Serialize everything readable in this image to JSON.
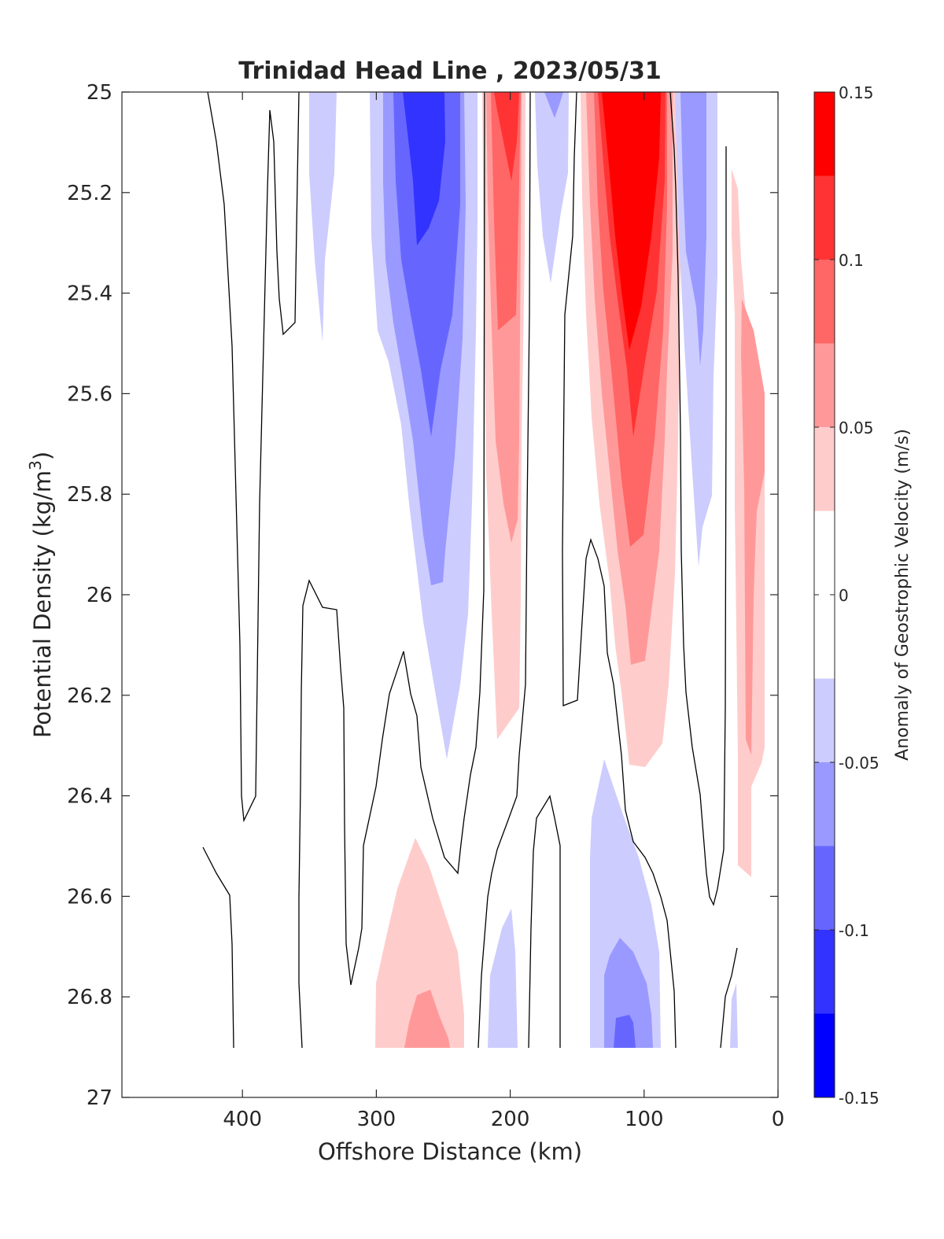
{
  "chart_data": {
    "type": "heatmap",
    "subtype": "filled-contour section",
    "title": "Trinidad Head Line , 2023/05/31",
    "xlabel": "Offshore Distance (km)",
    "ylabel_main": "Potential Density (kg/m",
    "ylabel_sup": "3",
    "ylabel_end": ")",
    "colorbar_label": "Anomaly of Geostrophic Velocity (m/s)",
    "xlim": [
      490,
      0
    ],
    "x_reversed": true,
    "ylim": [
      25,
      27
    ],
    "y_reversed": true,
    "x_ticks": [
      400,
      300,
      200,
      100,
      0
    ],
    "x_tick_labels": [
      "400",
      "300",
      "200",
      "100",
      "0"
    ],
    "y_ticks": [
      25,
      25.2,
      25.4,
      25.6,
      25.8,
      26,
      26.2,
      26.4,
      26.6,
      26.8,
      27
    ],
    "y_tick_labels": [
      "25",
      "25.2",
      "25.4",
      "25.6",
      "25.8",
      "26",
      "26.2",
      "26.4",
      "26.6",
      "26.8",
      "27"
    ],
    "colorbar": {
      "limits": [
        -0.15,
        0.15
      ],
      "ticks": [
        0.15,
        0.1,
        0.05,
        0,
        -0.05,
        -0.1,
        -0.15
      ],
      "tick_labels": [
        "0.15",
        "0.1",
        "0.05",
        "0",
        "-0.05",
        "-0.1",
        "-0.15"
      ],
      "levels": [
        -0.15,
        -0.125,
        -0.1,
        -0.075,
        -0.05,
        -0.025,
        0.025,
        0.05,
        0.075,
        0.1,
        0.125,
        0.15
      ],
      "colors": [
        "#0000ff",
        "#3333ff",
        "#6666ff",
        "#9999ff",
        "#ccccff",
        "#ffffff",
        "#ffcccc",
        "#ff9999",
        "#ff6666",
        "#ff3333",
        "#ff0000"
      ]
    },
    "data_extent": {
      "x": [
        490,
        0
      ],
      "y": [
        25,
        26.9
      ]
    },
    "features": [
      {
        "label": "offshore negative core",
        "x_km": 262,
        "y_top": 25.0,
        "y_bottom": 26.33,
        "peak_anomaly": -0.11
      },
      {
        "label": "nearshore positive core",
        "x_km": 108,
        "y_top": 25.0,
        "y_bottom": 26.34,
        "peak_anomaly": 0.14
      },
      {
        "label": "positive band",
        "x_km": 203,
        "y_top": 25.0,
        "y_bottom": 26.28,
        "peak_anomaly": 0.11
      },
      {
        "label": "negative band",
        "x_km": 65,
        "y_top": 25.0,
        "y_bottom": 25.87,
        "peak_anomaly": -0.065
      },
      {
        "label": "coastal positive band",
        "x_km": 20,
        "y_top": 25.15,
        "y_bottom": 26.56,
        "peak_anomaly": 0.06
      },
      {
        "label": "deep positive",
        "x_km": 270,
        "y_top": 26.48,
        "y_bottom": 26.9,
        "peak_anomaly": 0.06
      },
      {
        "label": "deep negative",
        "x_km": 110,
        "y_top": 26.33,
        "y_bottom": 26.9,
        "peak_anomaly": -0.09
      },
      {
        "label": "deep negative small",
        "x_km": 195,
        "y_top": 26.62,
        "y_bottom": 26.9,
        "peak_anomaly": -0.035
      }
    ]
  }
}
